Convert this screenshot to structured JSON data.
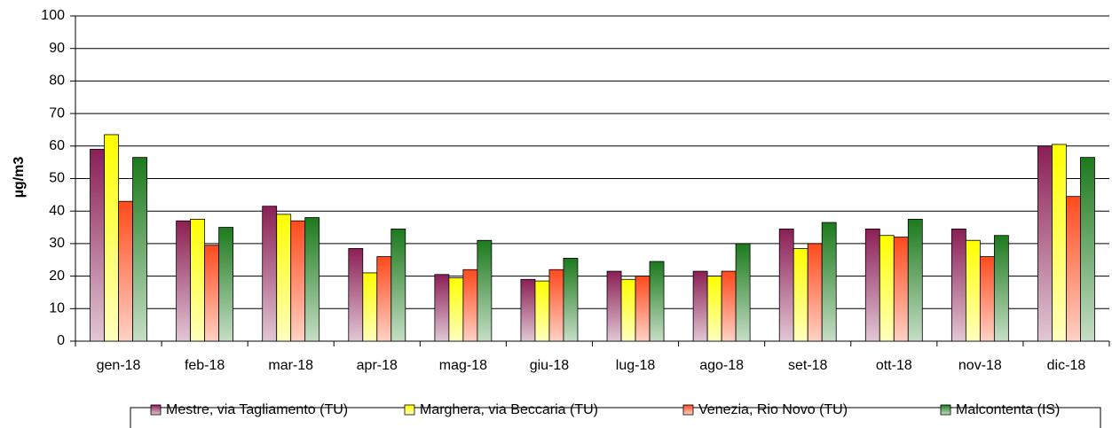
{
  "chart_data": {
    "type": "bar",
    "ylabel": "µg/m3",
    "categories": [
      "gen-18",
      "feb-18",
      "mar-18",
      "apr-18",
      "mag-18",
      "giu-18",
      "lug-18",
      "ago-18",
      "set-18",
      "ott-18",
      "nov-18",
      "dic-18"
    ],
    "series": [
      {
        "name": "Mestre, via Tagliamento (TU)",
        "color": "#8b1f55",
        "values": [
          59,
          37,
          41.5,
          28.5,
          20.5,
          19,
          21.5,
          21.5,
          34.5,
          34.5,
          34.5,
          60
        ]
      },
      {
        "name": "Marghera, via Beccaria (TU)",
        "color": "#ffff00",
        "values": [
          63.5,
          37.5,
          39,
          21,
          19.5,
          18.5,
          19,
          20,
          28.5,
          32.5,
          31,
          60.5
        ]
      },
      {
        "name": "Venezia, Rio Novo (TU)",
        "color": "#ff4a1c",
        "values": [
          43,
          29.5,
          37,
          26,
          22,
          22,
          20,
          21.5,
          30,
          32,
          26,
          44.5
        ]
      },
      {
        "name": "Malcontenta (IS)",
        "color": "#1c7a1c",
        "values": [
          56.5,
          35,
          38,
          34.5,
          31,
          25.5,
          24.5,
          30,
          36.5,
          37.5,
          32.5,
          56.5
        ]
      }
    ],
    "ylim": [
      0,
      100
    ],
    "yticks": [
      0,
      10,
      20,
      30,
      40,
      50,
      60,
      70,
      80,
      90,
      100
    ],
    "grid": true
  }
}
